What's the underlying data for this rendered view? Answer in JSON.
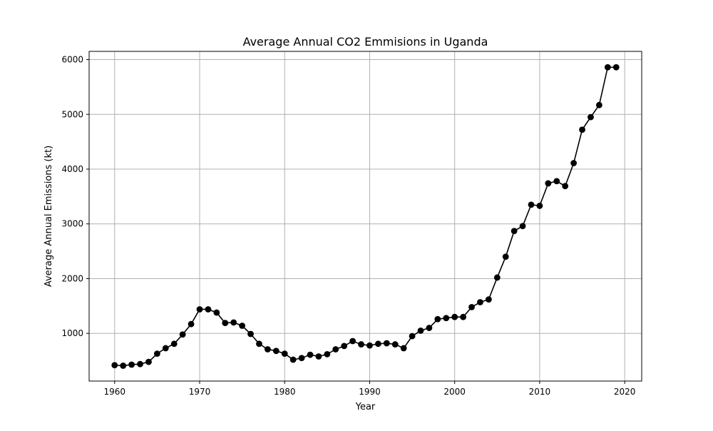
{
  "chart_data": {
    "type": "line",
    "title": "Average Annual CO2 Emmisions in Uganda",
    "xlabel": "Year",
    "ylabel": "Average Annual Emissions (kt)",
    "xlim": [
      1957,
      2022
    ],
    "ylim": [
      130,
      6150
    ],
    "x_ticks": [
      1960,
      1970,
      1980,
      1990,
      2000,
      2010,
      2020
    ],
    "y_ticks": [
      1000,
      2000,
      3000,
      4000,
      5000,
      6000
    ],
    "grid": true,
    "series_color": "#000000",
    "grid_color": "#b0b0b0",
    "x": [
      1960,
      1961,
      1962,
      1963,
      1964,
      1965,
      1966,
      1967,
      1968,
      1969,
      1970,
      1971,
      1972,
      1973,
      1974,
      1975,
      1976,
      1977,
      1978,
      1979,
      1980,
      1981,
      1982,
      1983,
      1984,
      1985,
      1986,
      1987,
      1988,
      1989,
      1990,
      1991,
      1992,
      1993,
      1994,
      1995,
      1996,
      1997,
      1998,
      1999,
      2000,
      2001,
      2002,
      2003,
      2004,
      2005,
      2006,
      2007,
      2008,
      2009,
      2010,
      2011,
      2012,
      2013,
      2014,
      2015,
      2016,
      2017,
      2018,
      2019
    ],
    "y": [
      420,
      410,
      430,
      440,
      480,
      630,
      730,
      810,
      980,
      1170,
      1440,
      1440,
      1380,
      1190,
      1200,
      1140,
      990,
      810,
      710,
      680,
      630,
      520,
      550,
      610,
      580,
      620,
      710,
      770,
      860,
      800,
      780,
      810,
      820,
      800,
      730,
      950,
      1050,
      1100,
      1260,
      1280,
      1300,
      1300,
      1480,
      1570,
      1620,
      2020,
      2400,
      2870,
      2960,
      3350,
      3330,
      3740,
      3780,
      3690,
      4110,
      4720,
      4950,
      5170,
      5860,
      5860
    ]
  }
}
